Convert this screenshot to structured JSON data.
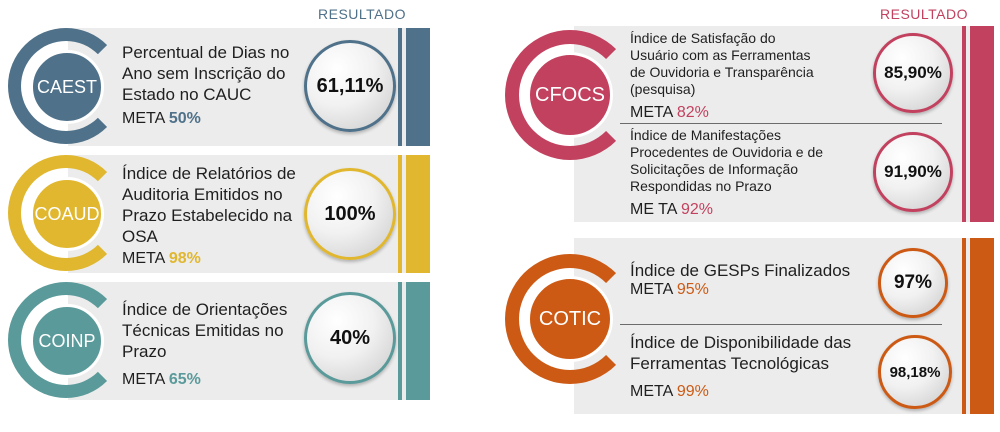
{
  "colors": {
    "caest": "#4f7189",
    "coaud": "#e0b72e",
    "coinp": "#5b9a9a",
    "cfocs": "#c2415f",
    "cotic": "#cd5a14"
  },
  "left": {
    "resultado_label": "RESULTADO",
    "items": [
      {
        "code": "CAEST",
        "desc": "Percentual de Dias no Ano sem Inscrição do Estado no CAUC",
        "meta_label": "META",
        "meta_value": "50%",
        "result": "61,11%"
      },
      {
        "code": "COAUD",
        "desc": "Índice de Relatórios de Auditoria Emitidos no Prazo Estabelecido na OSA",
        "meta_label": "META",
        "meta_value": "98%",
        "result": "100%"
      },
      {
        "code": "COINP",
        "desc": "Índice de Orientações Técnicas Emitidas no Prazo",
        "meta_label": "META",
        "meta_value": "65%",
        "result": "40%"
      }
    ]
  },
  "right": {
    "resultado_label": "RESULTADO",
    "cfocs": {
      "code": "CFOCS",
      "items": [
        {
          "desc": "Índice de Satisfação do Usuário com as Ferramentas de Ouvidoria e Transparência (pesquisa)",
          "meta_label": "META",
          "meta_value": "82%",
          "result": "85,90%"
        },
        {
          "desc": "Índice de Manifestações Procedentes de Ouvidoria e de Solicitações de Informação Respondidas no Prazo",
          "meta_label": "ME TA",
          "meta_value": "92%",
          "result": "91,90%"
        }
      ]
    },
    "cotic": {
      "code": "COTIC",
      "items": [
        {
          "desc": "Índice de GESPs Finalizados",
          "meta_label": "META",
          "meta_value": "95%",
          "result": "97%"
        },
        {
          "desc": "Índice de Disponibilidade das Ferramentas Tecnológicas",
          "meta_label": "META",
          "meta_value": "99%",
          "result": "98,18%"
        }
      ]
    }
  }
}
